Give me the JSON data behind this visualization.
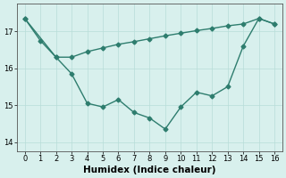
{
  "series1_x": [
    0,
    1,
    2,
    3,
    4,
    5,
    6,
    7,
    8,
    9,
    10,
    11,
    12,
    13,
    14,
    15,
    16
  ],
  "series1_y": [
    17.35,
    16.75,
    16.3,
    15.85,
    15.05,
    14.95,
    15.15,
    14.8,
    14.65,
    14.35,
    14.95,
    15.35,
    15.25,
    15.5,
    16.6,
    17.35,
    17.2
  ],
  "series2_x": [
    0,
    2,
    3,
    4,
    5,
    6,
    7,
    8,
    9,
    10,
    11,
    12,
    13,
    14,
    15,
    16
  ],
  "series2_y": [
    17.35,
    16.3,
    16.3,
    16.45,
    16.55,
    16.65,
    16.72,
    16.8,
    16.88,
    16.95,
    17.02,
    17.08,
    17.15,
    17.2,
    17.35,
    17.2
  ],
  "line_color": "#2e7d6e",
  "bg_color": "#d8f0ed",
  "grid_color": "#b8ddd8",
  "xlabel": "Humidex (Indice chaleur)",
  "xlabel_fontsize": 7.5,
  "xticks": [
    0,
    1,
    2,
    3,
    4,
    5,
    6,
    7,
    8,
    9,
    10,
    11,
    12,
    13,
    14,
    15,
    16
  ],
  "yticks": [
    14,
    15,
    16,
    17
  ],
  "ylim": [
    13.75,
    17.75
  ],
  "xlim": [
    -0.5,
    16.5
  ],
  "marker": "D",
  "marker_size": 2.5,
  "linewidth": 1.0
}
